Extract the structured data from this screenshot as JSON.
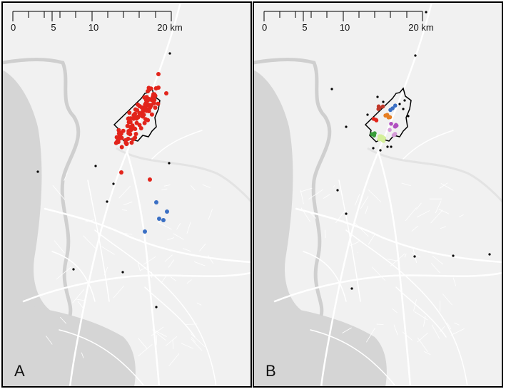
{
  "panels": [
    {
      "label": "A",
      "scale_labels": [
        "0",
        "5",
        "10",
        "20 km"
      ]
    },
    {
      "label": "B",
      "scale_labels": [
        "0",
        "5",
        "10",
        "20 km"
      ]
    }
  ]
}
